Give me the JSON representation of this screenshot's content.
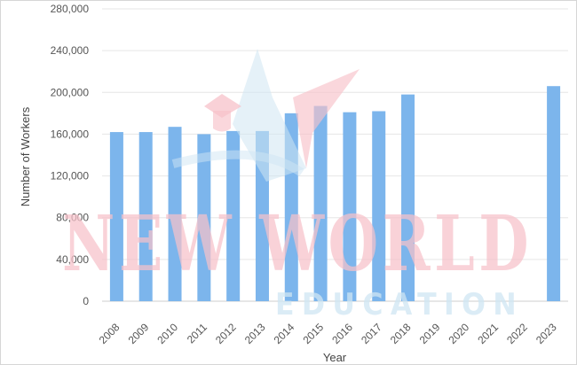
{
  "chart_data": {
    "type": "bar",
    "categories": [
      "2008",
      "2009",
      "2010",
      "2011",
      "2012",
      "2013",
      "2014",
      "2015",
      "2016",
      "2017",
      "2018",
      "2019",
      "2020",
      "2021",
      "2022",
      "2023"
    ],
    "series": [
      {
        "values": [
          162000,
          162000,
          167000,
          160000,
          163000,
          163000,
          180000,
          187000,
          181000,
          182000,
          198000,
          null,
          null,
          null,
          null,
          206000
        ]
      }
    ],
    "xlabel": "Year",
    "ylabel": "Number of Workers",
    "ylim": [
      0,
      280000
    ],
    "yticks": [
      0,
      40000,
      80000,
      120000,
      160000,
      200000,
      240000,
      280000
    ],
    "ytick_labels": [
      "0",
      "40,000",
      "80,000",
      "120,000",
      "160,000",
      "200,000",
      "240,000",
      "280,000"
    ],
    "grid": true,
    "bar_color": "#7cb5ec",
    "grid_color": "#e6e6e6"
  },
  "watermark": {
    "line1": "NEW WORLD",
    "line2": "EDUCATION"
  }
}
